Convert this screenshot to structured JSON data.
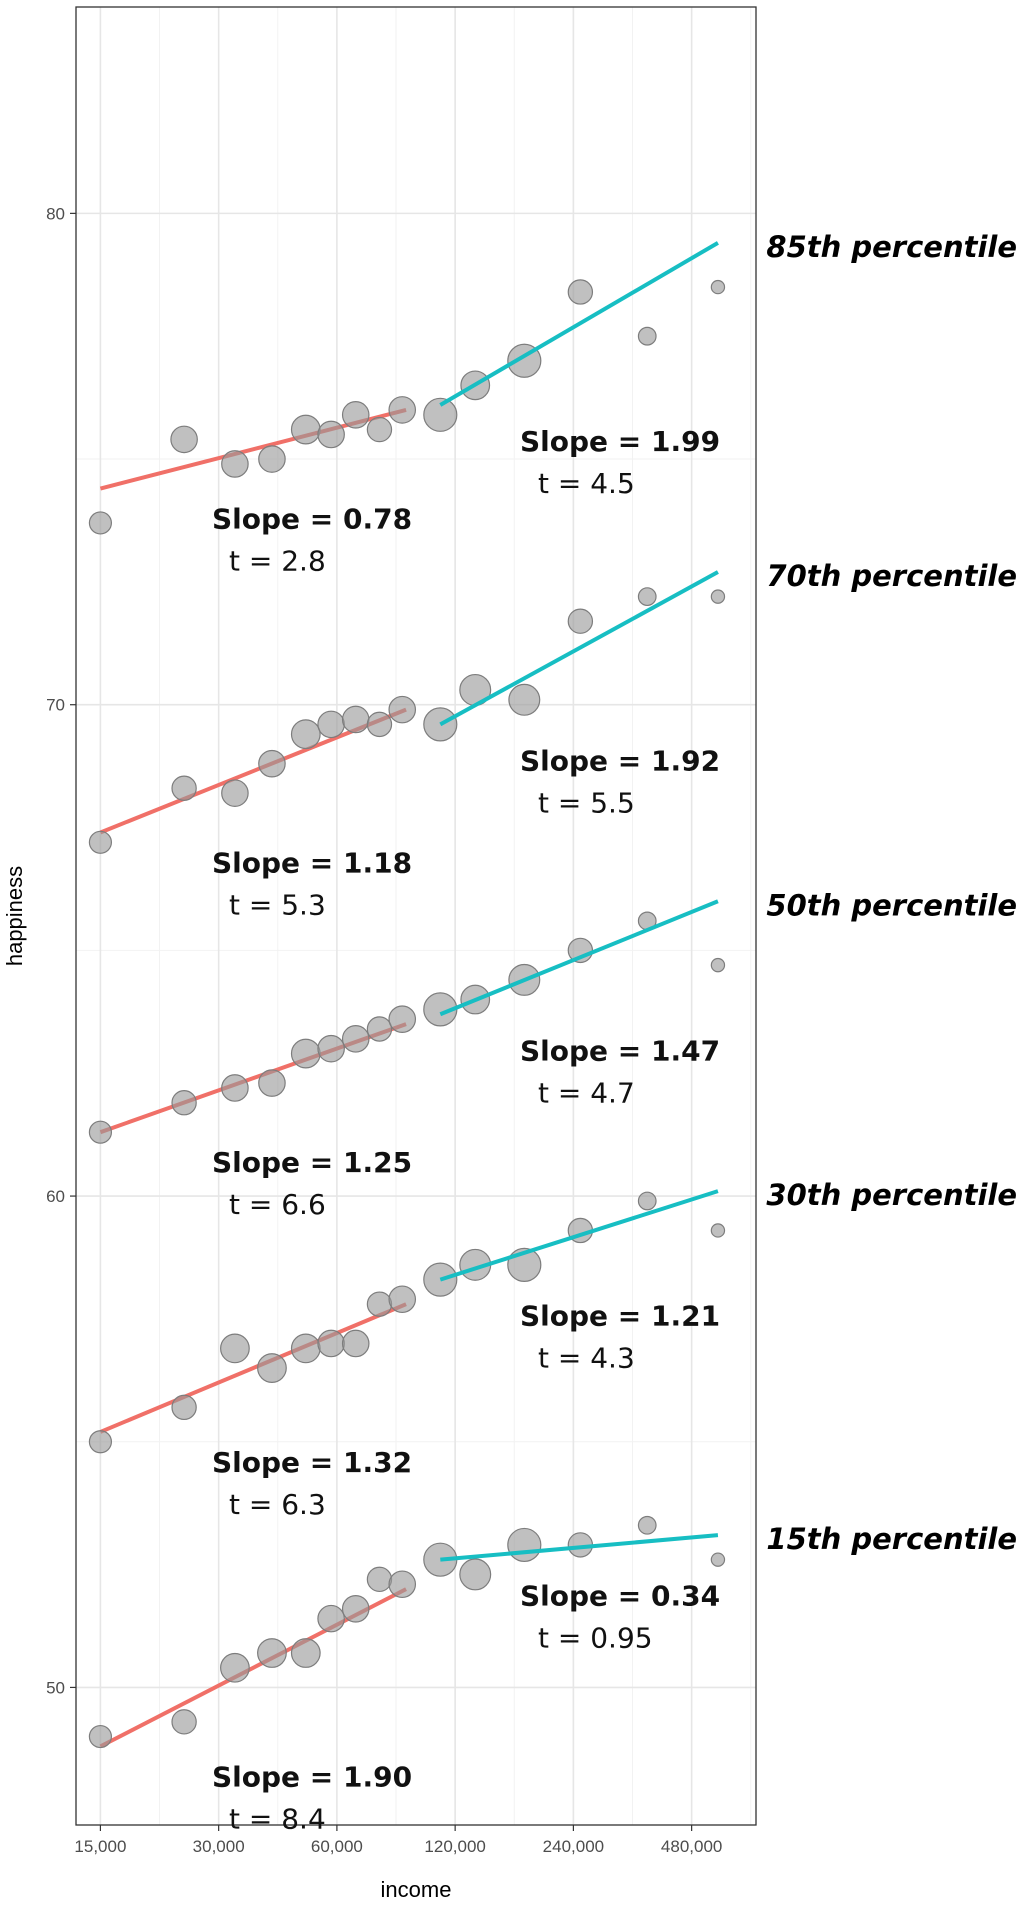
{
  "chart_data": {
    "type": "scatter",
    "xlabel": "income",
    "ylabel": "happiness",
    "x_scale": "log2",
    "xlim": [
      13000,
      700000
    ],
    "ylim": [
      47.2,
      84.2
    ],
    "x_ticks": [
      {
        "value": 15000,
        "label": "15,000"
      },
      {
        "value": 30000,
        "label": "30,000"
      },
      {
        "value": 60000,
        "label": "60,000"
      },
      {
        "value": 120000,
        "label": "120,000"
      },
      {
        "value": 240000,
        "label": "240,000"
      },
      {
        "value": 480000,
        "label": "480,000"
      }
    ],
    "y_ticks": [
      {
        "value": 50,
        "label": "50"
      },
      {
        "value": 60,
        "label": "60"
      },
      {
        "value": 70,
        "label": "70"
      },
      {
        "value": 80,
        "label": "80"
      }
    ],
    "grid": true,
    "colors": {
      "low_income_fit": "#f07068",
      "high_income_fit": "#17bec3",
      "points": "#9a9a9a"
    },
    "groups": [
      {
        "percentile": "85th percentile",
        "points": [
          [
            15000,
            73.7,
            1
          ],
          [
            24500,
            75.4,
            1.2
          ],
          [
            33000,
            74.9,
            1.2
          ],
          [
            41000,
            75.0,
            1.2
          ],
          [
            50000,
            75.6,
            1.3
          ],
          [
            58000,
            75.5,
            1.2
          ],
          [
            67000,
            75.9,
            1.2
          ],
          [
            77000,
            75.6,
            1.1
          ],
          [
            88000,
            76.0,
            1.2
          ],
          [
            110000,
            75.9,
            1.5
          ],
          [
            135000,
            76.5,
            1.3
          ],
          [
            180000,
            77.0,
            1.5
          ],
          [
            250000,
            78.4,
            1.1
          ],
          [
            370000,
            77.5,
            0.8
          ],
          [
            560000,
            78.5,
            0.6
          ]
        ],
        "fits": [
          {
            "range": [
              15000,
              90000
            ],
            "y": [
              74.4,
              76.0
            ],
            "slope": "Slope = 0.78",
            "t": "t = 2.8"
          },
          {
            "range": [
              110000,
              560000
            ],
            "y": [
              76.1,
              79.4
            ],
            "slope": "Slope = 1.99",
            "t": "t = 4.5"
          }
        ]
      },
      {
        "percentile": "70th percentile",
        "points": [
          [
            15000,
            67.2,
            1
          ],
          [
            24500,
            68.3,
            1.1
          ],
          [
            33000,
            68.2,
            1.2
          ],
          [
            41000,
            68.8,
            1.2
          ],
          [
            50000,
            69.4,
            1.3
          ],
          [
            58000,
            69.6,
            1.2
          ],
          [
            67000,
            69.7,
            1.2
          ],
          [
            77000,
            69.6,
            1.1
          ],
          [
            88000,
            69.9,
            1.2
          ],
          [
            110000,
            69.6,
            1.5
          ],
          [
            135000,
            70.3,
            1.4
          ],
          [
            180000,
            70.1,
            1.4
          ],
          [
            250000,
            71.7,
            1.1
          ],
          [
            370000,
            72.2,
            0.8
          ],
          [
            560000,
            72.2,
            0.6
          ]
        ],
        "fits": [
          {
            "range": [
              15000,
              90000
            ],
            "y": [
              67.4,
              69.9
            ],
            "slope": "Slope = 1.18",
            "t": "t = 5.3"
          },
          {
            "range": [
              110000,
              560000
            ],
            "y": [
              69.6,
              72.7
            ],
            "slope": "Slope = 1.92",
            "t": "t = 5.5"
          }
        ]
      },
      {
        "percentile": "50th percentile",
        "points": [
          [
            15000,
            61.3,
            1
          ],
          [
            24500,
            61.9,
            1.1
          ],
          [
            33000,
            62.2,
            1.2
          ],
          [
            41000,
            62.3,
            1.2
          ],
          [
            50000,
            62.9,
            1.3
          ],
          [
            58000,
            63.0,
            1.2
          ],
          [
            67000,
            63.2,
            1.2
          ],
          [
            77000,
            63.4,
            1.1
          ],
          [
            88000,
            63.6,
            1.2
          ],
          [
            110000,
            63.8,
            1.5
          ],
          [
            135000,
            64.0,
            1.3
          ],
          [
            180000,
            64.4,
            1.4
          ],
          [
            250000,
            65.0,
            1.1
          ],
          [
            370000,
            65.6,
            0.8
          ],
          [
            560000,
            64.7,
            0.6
          ]
        ],
        "fits": [
          {
            "range": [
              15000,
              90000
            ],
            "y": [
              61.3,
              63.5
            ],
            "slope": "Slope = 1.25",
            "t": "t = 6.6"
          },
          {
            "range": [
              110000,
              560000
            ],
            "y": [
              63.7,
              66.0
            ],
            "slope": "Slope = 1.47",
            "t": "t = 4.7"
          }
        ]
      },
      {
        "percentile": "30th percentile",
        "points": [
          [
            15000,
            55.0,
            1
          ],
          [
            24500,
            55.7,
            1.1
          ],
          [
            33000,
            56.9,
            1.3
          ],
          [
            41000,
            56.5,
            1.3
          ],
          [
            50000,
            56.9,
            1.3
          ],
          [
            58000,
            57.0,
            1.2
          ],
          [
            67000,
            57.0,
            1.2
          ],
          [
            77000,
            57.8,
            1.1
          ],
          [
            88000,
            57.9,
            1.2
          ],
          [
            110000,
            58.3,
            1.5
          ],
          [
            135000,
            58.6,
            1.4
          ],
          [
            180000,
            58.6,
            1.5
          ],
          [
            250000,
            59.3,
            1.1
          ],
          [
            370000,
            59.9,
            0.8
          ],
          [
            560000,
            59.3,
            0.6
          ]
        ],
        "fits": [
          {
            "range": [
              15000,
              90000
            ],
            "y": [
              55.2,
              57.8
            ],
            "slope": "Slope = 1.32",
            "t": "t = 6.3"
          },
          {
            "range": [
              110000,
              560000
            ],
            "y": [
              58.3,
              60.1
            ],
            "slope": "Slope = 1.21",
            "t": "t = 4.3"
          }
        ]
      },
      {
        "percentile": "15th percentile",
        "points": [
          [
            15000,
            49.0,
            1
          ],
          [
            24500,
            49.3,
            1.1
          ],
          [
            33000,
            50.4,
            1.3
          ],
          [
            41000,
            50.7,
            1.3
          ],
          [
            50000,
            50.7,
            1.3
          ],
          [
            58000,
            51.4,
            1.2
          ],
          [
            67000,
            51.6,
            1.2
          ],
          [
            77000,
            52.2,
            1.1
          ],
          [
            88000,
            52.1,
            1.2
          ],
          [
            110000,
            52.6,
            1.5
          ],
          [
            135000,
            52.3,
            1.4
          ],
          [
            180000,
            52.9,
            1.5
          ],
          [
            250000,
            52.9,
            1.1
          ],
          [
            370000,
            53.3,
            0.8
          ],
          [
            560000,
            52.6,
            0.6
          ]
        ],
        "fits": [
          {
            "range": [
              15000,
              90000
            ],
            "y": [
              48.8,
              52.0
            ],
            "slope": "Slope = 1.90",
            "t": "t = 8.4"
          },
          {
            "range": [
              110000,
              560000
            ],
            "y": [
              52.6,
              53.1
            ],
            "slope": "Slope = 0.34",
            "t": "t = 0.95"
          }
        ]
      }
    ]
  }
}
